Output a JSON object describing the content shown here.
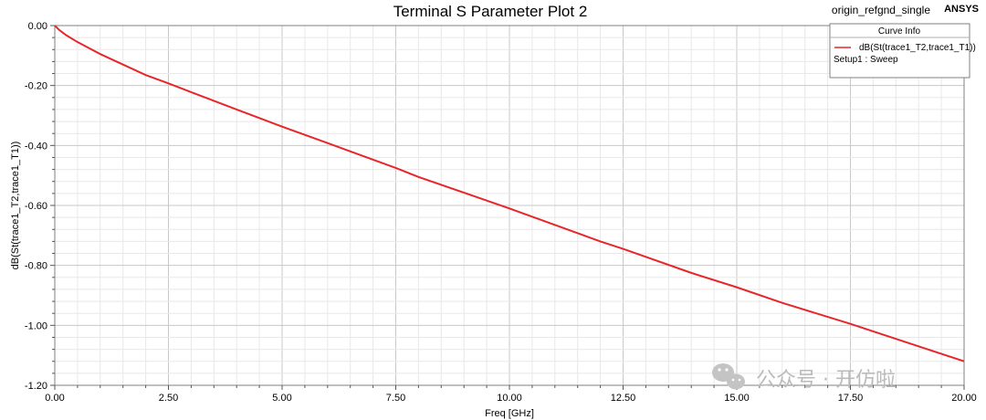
{
  "chart_data": {
    "type": "line",
    "title": "Terminal S Parameter Plot 2",
    "design_name": "origin_refgnd_single",
    "brand": "ANSYS",
    "xlabel": "Freq [GHz]",
    "ylabel": "dB(St(trace1_T2,trace1_T1))",
    "xlim": [
      0,
      20
    ],
    "ylim": [
      -1.2,
      0
    ],
    "x_ticks": [
      "0.00",
      "2.50",
      "5.00",
      "7.50",
      "10.00",
      "12.50",
      "15.00",
      "17.50",
      "20.00"
    ],
    "y_ticks": [
      "0.00",
      "-0.20",
      "-0.40",
      "-0.60",
      "-0.80",
      "-1.00",
      "-1.20"
    ],
    "grid": true,
    "legend": {
      "position": "top-right",
      "title": "Curve Info",
      "entries": [
        "dB(St(trace1_T2,trace1_T1))"
      ],
      "setup": "Setup1 : Sweep"
    },
    "series": [
      {
        "name": "dB(St(trace1_T2,trace1_T1))",
        "color": "#e8262a",
        "x": [
          0,
          0.1,
          0.25,
          0.5,
          0.75,
          1.0,
          1.5,
          2.0,
          2.5,
          3.0,
          4.0,
          5.0,
          6.0,
          7.5,
          8.0,
          10.0,
          12.0,
          12.5,
          14.0,
          15.0,
          16.0,
          17.5,
          18.0,
          19.0,
          20.0
        ],
        "y": [
          0,
          -0.015,
          -0.032,
          -0.055,
          -0.075,
          -0.095,
          -0.13,
          -0.165,
          -0.193,
          -0.222,
          -0.28,
          -0.337,
          -0.392,
          -0.475,
          -0.505,
          -0.61,
          -0.72,
          -0.745,
          -0.825,
          -0.873,
          -0.925,
          -0.995,
          -1.02,
          -1.07,
          -1.12
        ]
      }
    ]
  },
  "watermark": {
    "text": "公众号 · 开仿啦"
  }
}
